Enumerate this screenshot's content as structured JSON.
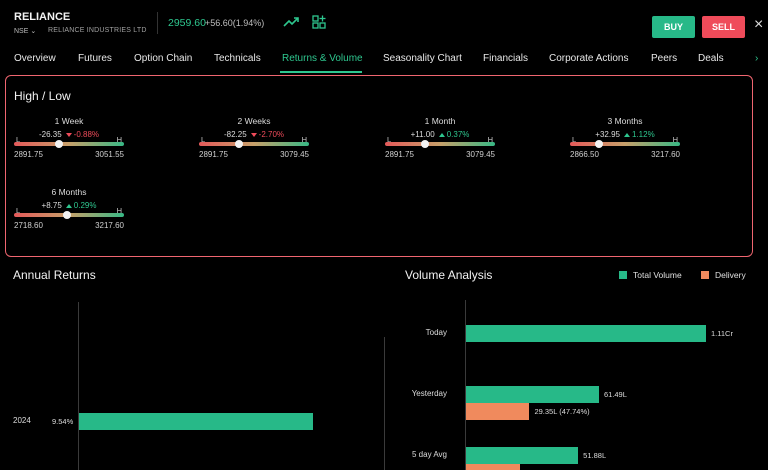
{
  "header": {
    "symbol": "RELIANCE",
    "exchange": "NSE",
    "company": "RELIANCE INDUSTRIES LTD",
    "price": "2959.60",
    "change": "+56.60(1.94%)",
    "buy_label": "BUY",
    "sell_label": "SELL",
    "icons": [
      "trend-up-icon",
      "add-watchlist-icon",
      "close-icon"
    ],
    "colors": {
      "buy": "#27b988",
      "sell": "#ef4b5a",
      "price_up": "#2ec78f"
    }
  },
  "tabs": [
    {
      "label": "Overview"
    },
    {
      "label": "Futures"
    },
    {
      "label": "Option Chain"
    },
    {
      "label": "Technicals"
    },
    {
      "label": "Returns & Volume",
      "active": true
    },
    {
      "label": "Seasonality Chart"
    },
    {
      "label": "Financials"
    },
    {
      "label": "Corporate Actions"
    },
    {
      "label": "Peers"
    },
    {
      "label": "Deals"
    }
  ],
  "high_low": {
    "title": "High / Low",
    "low_marker": "L",
    "high_marker": "H",
    "items": [
      {
        "period": "1 Week",
        "change": "-26.35",
        "pct": "-0.88%",
        "dir": "down",
        "low": "2891.75",
        "high": "3051.55",
        "position": 0.41
      },
      {
        "period": "2 Weeks",
        "change": "-82.25",
        "pct": "-2.70%",
        "dir": "down",
        "low": "2891.75",
        "high": "3079.45",
        "position": 0.36
      },
      {
        "period": "1 Month",
        "change": "+11.00",
        "pct": "0.37%",
        "dir": "up",
        "low": "2891.75",
        "high": "3079.45",
        "position": 0.36
      },
      {
        "period": "3 Months",
        "change": "+32.95",
        "pct": "1.12%",
        "dir": "up",
        "low": "2866.50",
        "high": "3217.60",
        "position": 0.26
      },
      {
        "period": "6 Months",
        "change": "+8.75",
        "pct": "0.29%",
        "dir": "up",
        "low": "2718.60",
        "high": "3217.60",
        "position": 0.48
      }
    ]
  },
  "annual_returns": {
    "title": "Annual Returns",
    "rows": [
      {
        "year": "2024",
        "value": "9.54%",
        "number": 9.54
      }
    ]
  },
  "volume_analysis": {
    "title": "Volume Analysis",
    "legend": [
      {
        "label": "Total Volume",
        "color": "#27b988"
      },
      {
        "label": "Delivery",
        "color": "#f08a5d"
      }
    ],
    "rows": [
      {
        "category": "Today",
        "total_label": "1.11Cr",
        "total": 111.0,
        "delivery_label": "",
        "delivery": 0
      },
      {
        "category": "Yesterday",
        "total_label": "61.49L",
        "total": 61.49,
        "delivery_label": "29.35L (47.74%)",
        "delivery": 29.35
      },
      {
        "category": "5 day Avg",
        "total_label": "51.88L",
        "total": 51.88,
        "delivery_label": "",
        "delivery": 25.0
      }
    ]
  }
}
